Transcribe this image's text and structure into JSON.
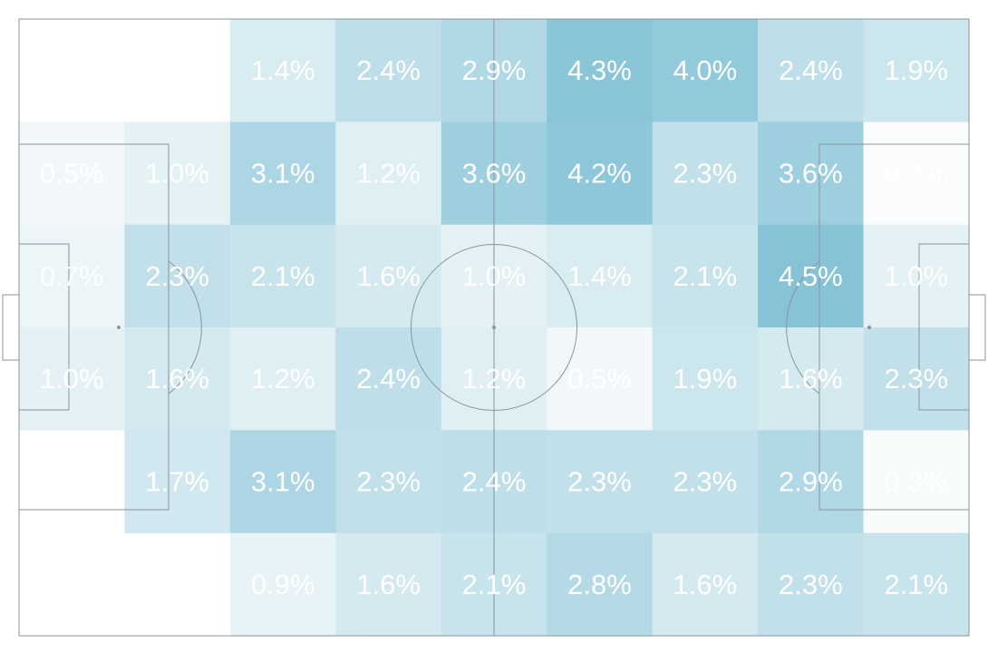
{
  "chart_data": {
    "type": "heatmap",
    "title": "",
    "rows": 6,
    "cols": 9,
    "color_scale": {
      "low": "#ffffff",
      "high": "#86c3d6"
    },
    "max_value": 4.5,
    "line_color": "#8a9499",
    "cells": [
      [
        null,
        null,
        1.4,
        2.4,
        2.9,
        4.3,
        4.0,
        2.4,
        1.9
      ],
      [
        0.5,
        1.0,
        3.1,
        1.2,
        3.6,
        4.2,
        2.3,
        3.6,
        0.2
      ],
      [
        0.7,
        2.3,
        2.1,
        1.6,
        1.0,
        1.4,
        2.1,
        4.5,
        1.0
      ],
      [
        1.0,
        1.6,
        1.2,
        2.4,
        1.2,
        0.5,
        1.9,
        1.6,
        2.3
      ],
      [
        null,
        1.7,
        3.1,
        2.3,
        2.4,
        2.3,
        2.3,
        2.9,
        0.3
      ],
      [
        null,
        null,
        0.9,
        1.6,
        2.1,
        2.8,
        1.6,
        2.3,
        2.1
      ]
    ],
    "labels": [
      [
        "",
        "",
        "1.4%",
        "2.4%",
        "2.9%",
        "4.3%",
        "4.0%",
        "2.4%",
        "1.9%"
      ],
      [
        "0.5%",
        "1.0%",
        "3.1%",
        "1.2%",
        "3.6%",
        "4.2%",
        "2.3%",
        "3.6%",
        "0.2%"
      ],
      [
        "0.7%",
        "2.3%",
        "2.1%",
        "1.6%",
        "1.0%",
        "1.4%",
        "2.1%",
        "4.5%",
        "1.0%"
      ],
      [
        "1.0%",
        "1.6%",
        "1.2%",
        "2.4%",
        "1.2%",
        "0.5%",
        "1.9%",
        "1.6%",
        "2.3%"
      ],
      [
        "",
        "1.7%",
        "3.1%",
        "2.3%",
        "2.4%",
        "2.3%",
        "2.3%",
        "2.9%",
        "0.3%"
      ],
      [
        "",
        "",
        "0.9%",
        "1.6%",
        "2.1%",
        "2.8%",
        "1.6%",
        "2.3%",
        "2.1%"
      ]
    ]
  }
}
